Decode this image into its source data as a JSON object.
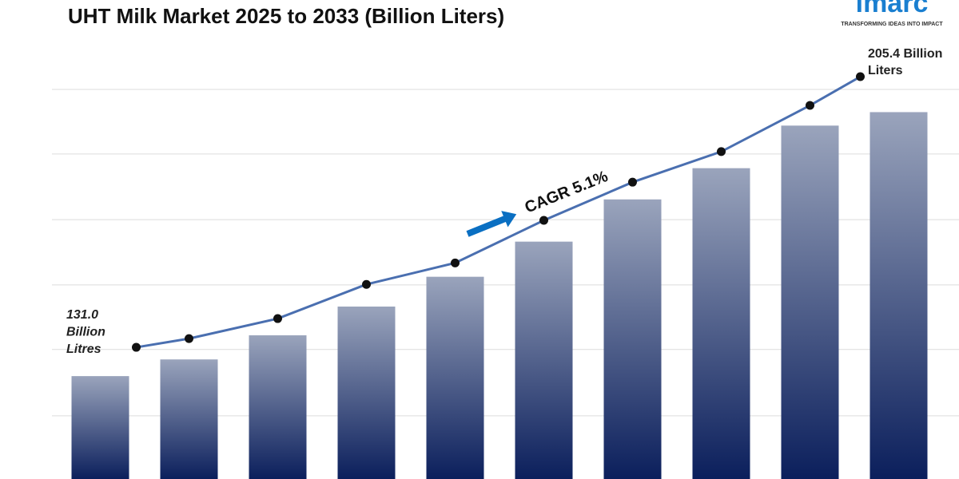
{
  "chart_data": {
    "type": "bar",
    "title": "UHT Milk Market 2025 to 2033 (Billion Liters)",
    "logo": {
      "name": "imarc",
      "tagline": "TRANSFORMING IDEAS INTO IMPACT"
    },
    "categories": [
      null,
      null,
      null,
      null,
      null,
      null,
      null,
      null,
      null,
      null
    ],
    "values": [
      131.0,
      135.7,
      142.5,
      150.6,
      159.0,
      168.9,
      180.8,
      189.6,
      201.6,
      205.4
    ],
    "color_top": "#9aa4bc",
    "color_bottom": "#0b1f5c",
    "ylim": [
      102,
      228
    ],
    "grid_lines": [
      119.8,
      138.5,
      156.7,
      175.1,
      193.6,
      211.8
    ],
    "line": {
      "values": [
        131.0,
        133.4,
        138.9,
        148.3,
        154.2,
        165.9,
        176.4,
        184.8,
        197.5,
        205.4
      ],
      "color": "#4a6fb0",
      "axis": "y2"
    },
    "y2lim": [
      94.8,
      217.7
    ],
    "start_label": [
      "131.0",
      "Billion",
      "Litres"
    ],
    "end_label": [
      "205.4 Billion",
      "Liters"
    ],
    "cagr": "CAGR  5.1%"
  }
}
